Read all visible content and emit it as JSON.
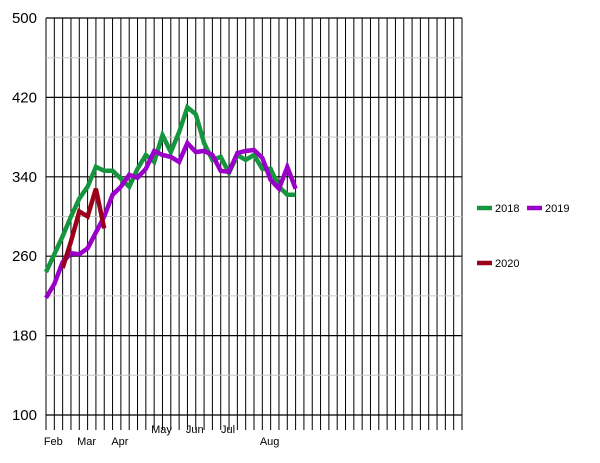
{
  "chart_data": {
    "type": "line",
    "title": "",
    "xlabel": "",
    "ylabel": "",
    "ylim": [
      100,
      500
    ],
    "yticks": [
      "100",
      "180",
      "260",
      "340",
      "420",
      "500"
    ],
    "xlim": [
      1,
      51
    ],
    "month_ticks": [
      {
        "label": "Feb",
        "x": 2
      },
      {
        "label": "Mar",
        "x": 6
      },
      {
        "label": "Apr",
        "x": 10
      },
      {
        "label": "May",
        "x": 15
      },
      {
        "label": "Jun",
        "x": 19
      },
      {
        "label": "Jul",
        "x": 23
      },
      {
        "label": "Aug",
        "x": 28
      }
    ],
    "grid": true,
    "legend": "right",
    "series": [
      {
        "name": "2018",
        "color": "#16953F",
        "x": [
          1,
          2,
          3,
          4,
          5,
          6,
          7,
          8,
          9,
          10,
          11,
          12,
          13,
          14,
          15,
          16,
          17,
          18,
          19,
          20,
          21,
          22,
          23,
          24,
          25,
          26,
          27,
          28,
          29,
          30,
          31
        ],
        "values": [
          244,
          262,
          280,
          300,
          318,
          330,
          350,
          346,
          346,
          338,
          330,
          348,
          362,
          355,
          382,
          365,
          385,
          410,
          403,
          374,
          357,
          360,
          344,
          362,
          357,
          362,
          348,
          348,
          330,
          322,
          322
        ]
      },
      {
        "name": "2019",
        "color": "#9B00C8",
        "x": [
          1,
          2,
          3,
          4,
          5,
          6,
          7,
          8,
          9,
          10,
          11,
          12,
          13,
          14,
          15,
          16,
          17,
          18,
          19,
          20,
          21,
          22,
          23,
          24,
          25,
          26,
          27,
          28,
          29,
          30,
          31
        ],
        "values": [
          218,
          232,
          254,
          263,
          262,
          268,
          284,
          300,
          322,
          330,
          342,
          339,
          348,
          366,
          362,
          360,
          355,
          374,
          365,
          366,
          362,
          346,
          345,
          364,
          366,
          367,
          359,
          337,
          328,
          350,
          328
        ]
      },
      {
        "name": "2020",
        "color": "#9B001A",
        "x": [
          3,
          4,
          5,
          6,
          7,
          8
        ],
        "values": [
          248,
          275,
          305,
          300,
          328,
          288
        ]
      }
    ]
  }
}
